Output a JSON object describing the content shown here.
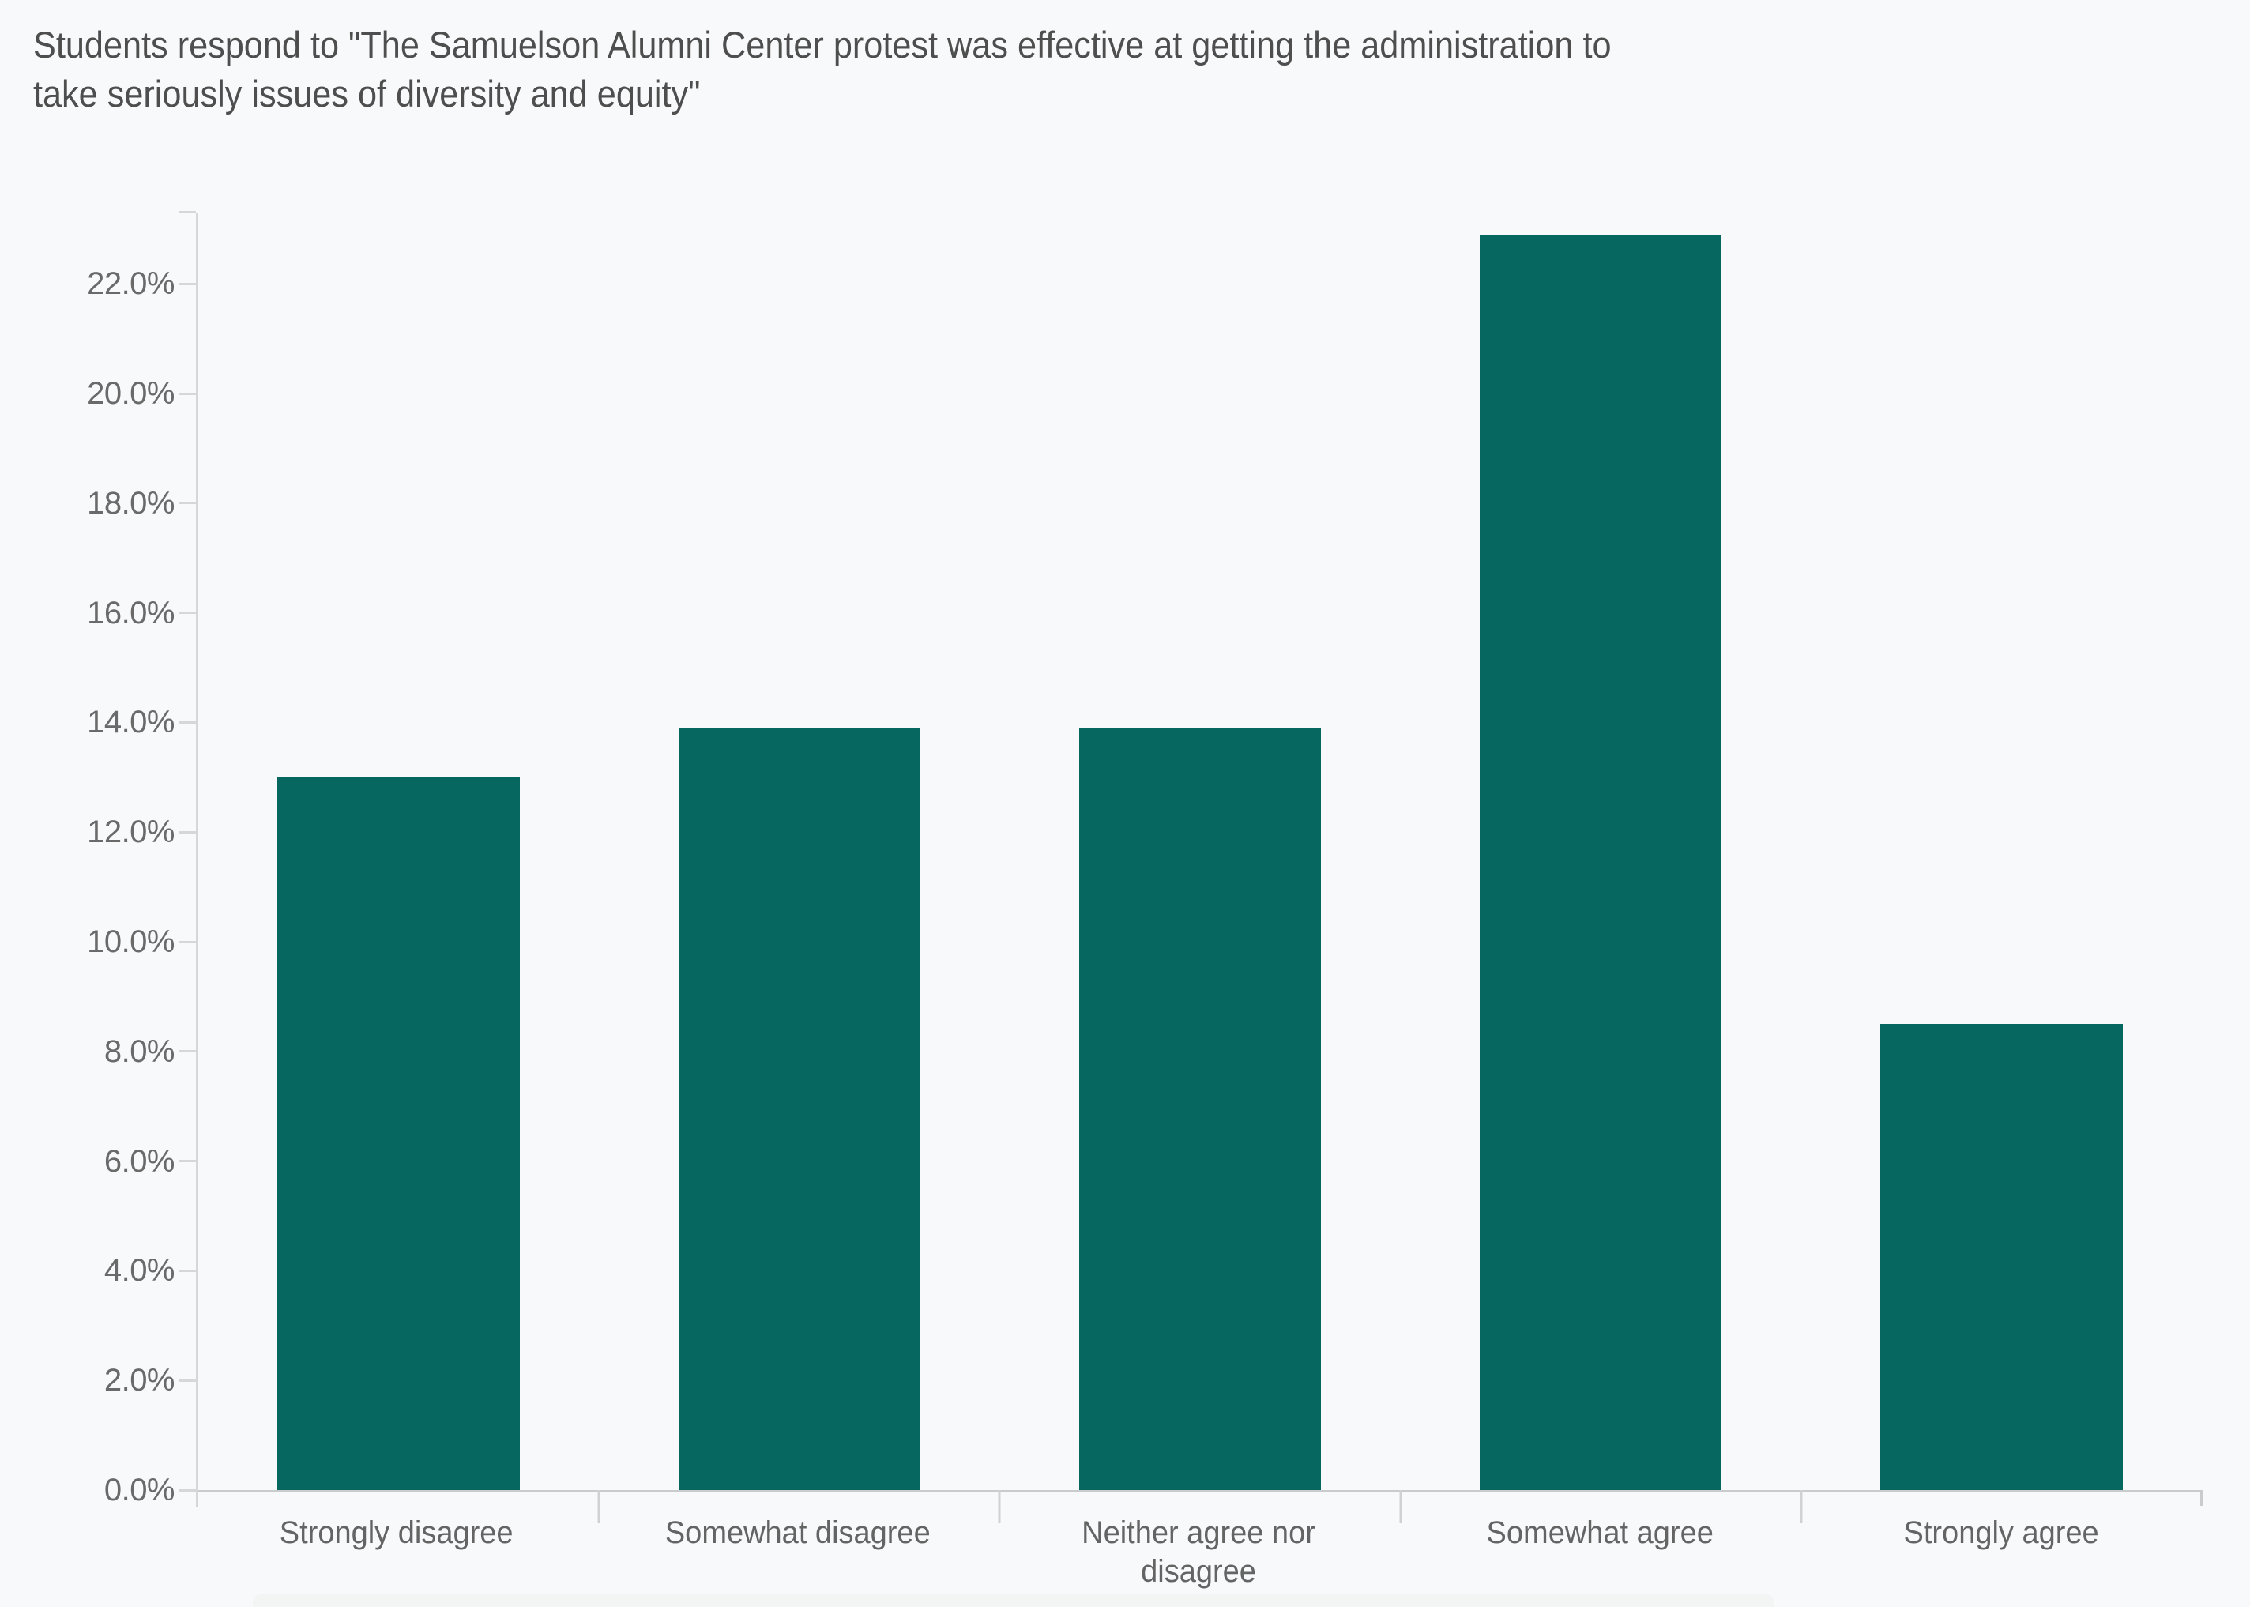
{
  "title": {
    "full": "Students respond to \"The Samuelson Alumni Center protest was effective at getting the administration to take seriously issues of diversity and equity\"",
    "lines": [
      "Students respond to \"The Samuelson Alumni Center protest was effective at getting the administration to",
      "take seriously issues of diversity and equity\""
    ]
  },
  "colors": {
    "background": "#f8f9fa",
    "bar": "#056760",
    "axis_line": "#d6d7d8",
    "baseline": "#c9cbcd",
    "title_text": "#4e4e4e",
    "label_text": "#656565",
    "footer_strip": "#f3f4f4"
  },
  "chart_data": {
    "type": "bar",
    "title": "Students respond to \"The Samuelson Alumni Center protest was effective at getting the administration to take seriously issues of diversity and equity\"",
    "categories": [
      "Strongly disagree",
      "Somewhat disagree",
      "Neither agree nor disagree",
      "Somewhat agree",
      "Strongly agree"
    ],
    "values": [
      13.0,
      13.9,
      13.9,
      22.9,
      8.5
    ],
    "value_unit": "%",
    "xlabel": "",
    "ylabel": "",
    "ylim": [
      0,
      23.3
    ],
    "y_ticks": [
      0,
      2,
      4,
      6,
      8,
      10,
      12,
      14,
      16,
      18,
      20,
      22
    ],
    "y_tick_labels": [
      "0.0%",
      "2.0%",
      "4.0%",
      "6.0%",
      "8.0%",
      "10.0%",
      "12.0%",
      "14.0%",
      "16.0%",
      "18.0%",
      "20.0%",
      "22.0%"
    ],
    "grid": false,
    "legend": "none",
    "bar_color": "#056760"
  }
}
